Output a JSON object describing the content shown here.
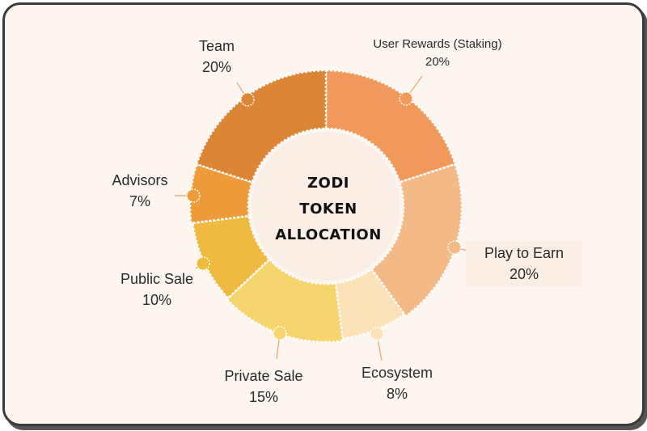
{
  "chart_data": {
    "type": "pie",
    "center_text": [
      "ZODI",
      "TOKEN",
      "ALLOCATION"
    ],
    "slices": [
      {
        "name": "User Rewards (Staking)",
        "value": 20,
        "label": "20%",
        "color": "#f0995a"
      },
      {
        "name": "Play to Earn",
        "value": 20,
        "label": "20%",
        "color": "#f3b986"
      },
      {
        "name": "Ecosystem",
        "value": 8,
        "label": "8%",
        "color": "#fbe2b8"
      },
      {
        "name": "Private Sale",
        "value": 15,
        "label": "15%",
        "color": "#f6d56f"
      },
      {
        "name": "Public Sale",
        "value": 10,
        "label": "10%",
        "color": "#eeba3f"
      },
      {
        "name": "Advisors",
        "value": 7,
        "label": "7%",
        "color": "#ee9c3a"
      },
      {
        "name": "Team",
        "value": 20,
        "label": "20%",
        "color": "#dc8535"
      }
    ]
  },
  "colors": {
    "background": "#fdf6f0",
    "border": "#3a3a3a",
    "center_fill": "#fbeee6"
  }
}
